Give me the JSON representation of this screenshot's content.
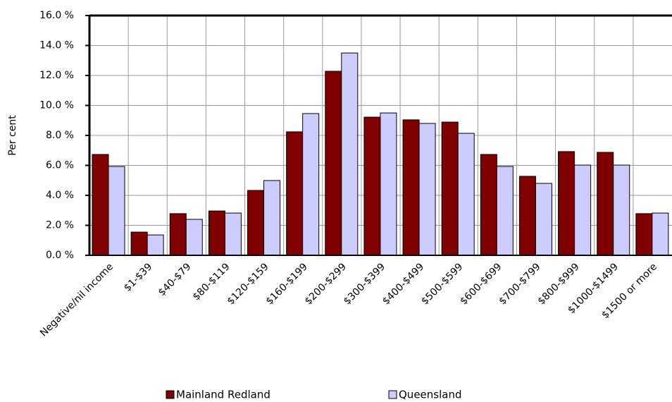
{
  "chart_data": {
    "type": "bar",
    "y_label": "Per cent",
    "categories": [
      "Negative/nil income",
      "$1-$39",
      "$40-$79",
      "$80-$119",
      "$120-$159",
      "$160-$199",
      "$200-$299",
      "$300-$399",
      "$400-$499",
      "$500-$599",
      "$600-$699",
      "$700-$799",
      "$800-$999",
      "$1000-$1499",
      "$1500 or more"
    ],
    "series": [
      {
        "name": "Mainland Redland",
        "color": "#800000",
        "values": [
          6.73,
          1.55,
          2.78,
          2.96,
          4.33,
          8.24,
          12.28,
          9.22,
          9.04,
          8.89,
          6.73,
          5.27,
          6.92,
          6.87,
          2.78
        ]
      },
      {
        "name": "Queensland",
        "color": "#ccccff",
        "values": [
          5.93,
          1.36,
          2.4,
          2.82,
          4.99,
          9.46,
          13.5,
          9.5,
          8.8,
          8.14,
          5.93,
          4.8,
          6.02,
          6.02,
          2.82
        ]
      }
    ],
    "ylim": [
      0,
      16
    ],
    "yticks": [
      {
        "value": 0,
        "label": "0.0 %"
      },
      {
        "value": 2,
        "label": "2.0 %"
      },
      {
        "value": 4,
        "label": "4.0 %"
      },
      {
        "value": 6,
        "label": "6.0 %"
      },
      {
        "value": 8,
        "label": "8.0 %"
      },
      {
        "value": 10,
        "label": "10.0 %"
      },
      {
        "value": 12,
        "label": "12.0 %"
      },
      {
        "value": 14,
        "label": "14.0 %"
      },
      {
        "value": 16,
        "label": "16.0 %"
      }
    ],
    "grid": true
  }
}
